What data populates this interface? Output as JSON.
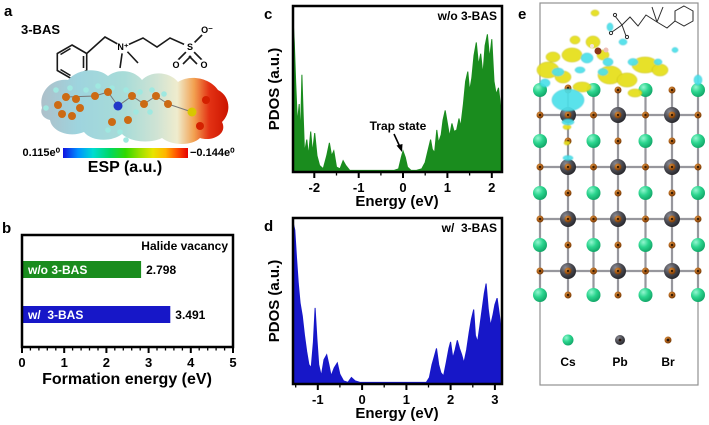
{
  "panels": {
    "a": "a",
    "b": "b",
    "c": "c",
    "d": "d",
    "e": "e"
  },
  "panel_a": {
    "molecule_name": "3-BAS",
    "structure_atoms": {
      "n": "N⁺",
      "s": "S",
      "o_minus": "O⁻",
      "o1": "O",
      "o2": "O"
    },
    "esp": {
      "min_label": "0.115e⁰",
      "max_label": "−0.144e⁰",
      "title": "ESP (a.u.)"
    }
  },
  "panel_e": {
    "legend": [
      {
        "symbol": "Cs",
        "color": "#2bd58e"
      },
      {
        "symbol": "Pb",
        "color": "#4b4b52"
      },
      {
        "symbol": "Br",
        "color": "#a85a14"
      }
    ]
  },
  "chart_data": [
    {
      "id": "formation-energy",
      "type": "bar",
      "orientation": "horizontal",
      "title": "Halide vacancy",
      "categories": [
        "w/o 3-BAS",
        "w/  3-BAS"
      ],
      "values": [
        2.798,
        3.491
      ],
      "value_labels": [
        "2.798",
        "3.491"
      ],
      "bar_colors": [
        "#1a8c1e",
        "#1717c8"
      ],
      "xlabel": "Formation energy (eV)",
      "xlim": [
        0,
        5
      ],
      "xticks": [
        0,
        1,
        2,
        3,
        4,
        5
      ]
    },
    {
      "id": "pdos-without-3bas",
      "type": "area",
      "title": "w/o 3-BAS",
      "xlabel": "Energy (eV)",
      "ylabel": "PDOS (a.u.)",
      "annotation": "Trap state",
      "color": "#1a8c1e",
      "xlim": [
        -2.48,
        2.23
      ],
      "xticks": [
        -2,
        -1,
        0,
        1,
        2
      ],
      "points": [
        [
          -2.48,
          0.95
        ],
        [
          -2.45,
          0.8
        ],
        [
          -2.42,
          0.55
        ],
        [
          -2.38,
          0.3
        ],
        [
          -2.34,
          0.42
        ],
        [
          -2.31,
          0.22
        ],
        [
          -2.28,
          0.6
        ],
        [
          -2.25,
          0.35
        ],
        [
          -2.22,
          0.12
        ],
        [
          -2.17,
          0.2
        ],
        [
          -2.13,
          0.1
        ],
        [
          -2.08,
          0.25
        ],
        [
          -2.04,
          0.12
        ],
        [
          -1.99,
          0.24
        ],
        [
          -1.94,
          0.1
        ],
        [
          -1.88,
          0.04
        ],
        [
          -1.8,
          0.02
        ],
        [
          -1.72,
          0.1
        ],
        [
          -1.66,
          0.18
        ],
        [
          -1.61,
          0.1
        ],
        [
          -1.56,
          0.13
        ],
        [
          -1.5,
          0.03
        ],
        [
          -1.42,
          0.02
        ],
        [
          -1.35,
          0.07
        ],
        [
          -1.29,
          0.04
        ],
        [
          -1.2,
          0.01
        ],
        [
          -1.0,
          0.01
        ],
        [
          -0.7,
          0.01
        ],
        [
          -0.4,
          0.01
        ],
        [
          -0.2,
          0.01
        ],
        [
          -0.1,
          0.02
        ],
        [
          -0.04,
          0.09
        ],
        [
          0.0,
          0.13
        ],
        [
          0.05,
          0.09
        ],
        [
          0.1,
          0.03
        ],
        [
          0.18,
          0.01
        ],
        [
          0.3,
          0.01
        ],
        [
          0.42,
          0.02
        ],
        [
          0.5,
          0.06
        ],
        [
          0.56,
          0.13
        ],
        [
          0.62,
          0.2
        ],
        [
          0.66,
          0.14
        ],
        [
          0.71,
          0.12
        ],
        [
          0.76,
          0.26
        ],
        [
          0.8,
          0.18
        ],
        [
          0.86,
          0.23
        ],
        [
          0.9,
          0.32
        ],
        [
          0.95,
          0.38
        ],
        [
          1.0,
          0.3
        ],
        [
          1.05,
          0.22
        ],
        [
          1.1,
          0.3
        ],
        [
          1.15,
          0.25
        ],
        [
          1.21,
          0.26
        ],
        [
          1.26,
          0.33
        ],
        [
          1.3,
          0.28
        ],
        [
          1.36,
          0.42
        ],
        [
          1.41,
          0.56
        ],
        [
          1.46,
          0.62
        ],
        [
          1.5,
          0.5
        ],
        [
          1.55,
          0.58
        ],
        [
          1.6,
          0.72
        ],
        [
          1.65,
          0.8
        ],
        [
          1.7,
          0.66
        ],
        [
          1.75,
          0.73
        ],
        [
          1.8,
          0.6
        ],
        [
          1.85,
          0.78
        ],
        [
          1.9,
          0.85
        ],
        [
          1.95,
          0.7
        ],
        [
          2.0,
          0.82
        ],
        [
          2.05,
          0.56
        ],
        [
          2.1,
          0.48
        ],
        [
          2.15,
          0.52
        ],
        [
          2.2,
          0.4
        ],
        [
          2.23,
          0.3
        ]
      ]
    },
    {
      "id": "pdos-with-3bas",
      "type": "area",
      "title": "w/  3-BAS",
      "xlabel": "Energy (eV)",
      "ylabel": "PDOS (a.u.)",
      "color": "#1717c8",
      "xlim": [
        -1.56,
        3.16
      ],
      "xticks": [
        -1,
        0,
        1,
        2,
        3
      ],
      "points": [
        [
          -1.56,
          1.0
        ],
        [
          -1.52,
          0.95
        ],
        [
          -1.48,
          0.78
        ],
        [
          -1.44,
          0.62
        ],
        [
          -1.4,
          0.5
        ],
        [
          -1.35,
          0.42
        ],
        [
          -1.3,
          0.3
        ],
        [
          -1.25,
          0.2
        ],
        [
          -1.2,
          0.12
        ],
        [
          -1.15,
          0.1
        ],
        [
          -1.1,
          0.26
        ],
        [
          -1.06,
          0.47
        ],
        [
          -1.02,
          0.28
        ],
        [
          -0.98,
          0.12
        ],
        [
          -0.92,
          0.05
        ],
        [
          -0.86,
          0.15
        ],
        [
          -0.8,
          0.18
        ],
        [
          -0.75,
          0.12
        ],
        [
          -0.7,
          0.05
        ],
        [
          -0.63,
          0.1
        ],
        [
          -0.56,
          0.13
        ],
        [
          -0.5,
          0.06
        ],
        [
          -0.42,
          0.02
        ],
        [
          -0.32,
          0.01
        ],
        [
          -0.24,
          0.04
        ],
        [
          -0.16,
          0.02
        ],
        [
          -0.05,
          0.01
        ],
        [
          0.3,
          0.01
        ],
        [
          0.8,
          0.01
        ],
        [
          1.2,
          0.01
        ],
        [
          1.45,
          0.01
        ],
        [
          1.52,
          0.04
        ],
        [
          1.58,
          0.12
        ],
        [
          1.63,
          0.17
        ],
        [
          1.68,
          0.22
        ],
        [
          1.73,
          0.12
        ],
        [
          1.78,
          0.07
        ],
        [
          1.84,
          0.05
        ],
        [
          1.9,
          0.13
        ],
        [
          1.96,
          0.22
        ],
        [
          2.0,
          0.26
        ],
        [
          2.05,
          0.16
        ],
        [
          2.1,
          0.21
        ],
        [
          2.15,
          0.27
        ],
        [
          2.2,
          0.22
        ],
        [
          2.25,
          0.18
        ],
        [
          2.3,
          0.13
        ],
        [
          2.36,
          0.21
        ],
        [
          2.42,
          0.32
        ],
        [
          2.47,
          0.4
        ],
        [
          2.52,
          0.46
        ],
        [
          2.56,
          0.3
        ],
        [
          2.61,
          0.26
        ],
        [
          2.66,
          0.36
        ],
        [
          2.71,
          0.46
        ],
        [
          2.76,
          0.56
        ],
        [
          2.8,
          0.62
        ],
        [
          2.85,
          0.46
        ],
        [
          2.9,
          0.36
        ],
        [
          2.96,
          0.43
        ],
        [
          3.0,
          0.49
        ],
        [
          3.05,
          0.53
        ],
        [
          3.1,
          0.43
        ],
        [
          3.16,
          0.3
        ]
      ]
    }
  ]
}
